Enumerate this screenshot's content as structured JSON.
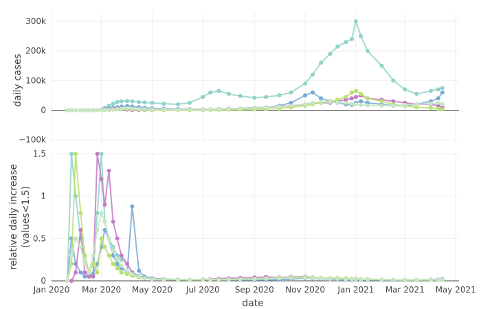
{
  "chart_data": {
    "type": "line",
    "x_dates": [
      "2020-01-20",
      "2020-01-25",
      "2020-01-30",
      "2020-02-05",
      "2020-02-10",
      "2020-02-15",
      "2020-02-20",
      "2020-02-25",
      "2020-03-01",
      "2020-03-05",
      "2020-03-10",
      "2020-03-15",
      "2020-03-20",
      "2020-03-25",
      "2020-04-01",
      "2020-04-07",
      "2020-04-15",
      "2020-04-22",
      "2020-05-01",
      "2020-05-15",
      "2020-06-01",
      "2020-06-15",
      "2020-07-01",
      "2020-07-10",
      "2020-07-20",
      "2020-08-01",
      "2020-08-15",
      "2020-09-01",
      "2020-09-15",
      "2020-10-01",
      "2020-10-15",
      "2020-11-01",
      "2020-11-10",
      "2020-11-20",
      "2020-12-01",
      "2020-12-10",
      "2020-12-20",
      "2020-12-27",
      "2021-01-01",
      "2021-01-07",
      "2021-01-15",
      "2021-02-01",
      "2021-02-15",
      "2021-03-01",
      "2021-03-15",
      "2021-04-01",
      "2021-04-10",
      "2021-04-15"
    ],
    "x_axis": {
      "title": "date",
      "range": [
        "2020-01-01",
        "2021-05-05"
      ],
      "ticks": [
        {
          "date": "2020-01-01",
          "label": "Jan 2020"
        },
        {
          "date": "2020-03-01",
          "label": "Mar 2020"
        },
        {
          "date": "2020-05-01",
          "label": "May 2020"
        },
        {
          "date": "2020-07-01",
          "label": "Jul 2020"
        },
        {
          "date": "2020-09-01",
          "label": "Sep 2020"
        },
        {
          "date": "2020-11-01",
          "label": "Nov 2020"
        },
        {
          "date": "2021-01-01",
          "label": "Jan 2021"
        },
        {
          "date": "2021-03-01",
          "label": "Mar 2021"
        },
        {
          "date": "2021-05-01",
          "label": "May 2021"
        }
      ]
    },
    "top_panel": {
      "ylabel": "daily cases",
      "ylim": [
        -110000,
        330000
      ],
      "ticks": [
        {
          "value": -100000,
          "label": "−100k"
        },
        {
          "value": 0,
          "label": "0"
        },
        {
          "value": 100000,
          "label": "100k"
        },
        {
          "value": 200000,
          "label": "200k"
        },
        {
          "value": 300000,
          "label": "300k"
        }
      ],
      "series": [
        {
          "color": "#8fd3c8",
          "values": [
            0,
            0,
            0,
            0,
            0,
            0,
            0,
            200,
            2000,
            8000,
            15000,
            22000,
            28000,
            30000,
            31000,
            30000,
            27000,
            26000,
            25000,
            22000,
            20000,
            25000,
            45000,
            60000,
            65000,
            55000,
            48000,
            42000,
            45000,
            50000,
            60000,
            90000,
            120000,
            160000,
            190000,
            215000,
            230000,
            240000,
            300000,
            250000,
            200000,
            150000,
            100000,
            70000,
            55000,
            65000,
            70000,
            75000
          ]
        },
        {
          "color": "#7aa9d6",
          "values": [
            0,
            0,
            0,
            0,
            0,
            0,
            0,
            100,
            1000,
            3000,
            5000,
            8000,
            10000,
            12000,
            14000,
            12000,
            10000,
            8000,
            6000,
            5000,
            4000,
            3500,
            3000,
            3000,
            4000,
            5000,
            6000,
            8000,
            10000,
            15000,
            25000,
            50000,
            60000,
            40000,
            30000,
            25000,
            20000,
            18000,
            25000,
            30000,
            25000,
            20000,
            15000,
            15000,
            20000,
            30000,
            40000,
            60000
          ]
        },
        {
          "color": "#c27bc4",
          "values": [
            0,
            0,
            0,
            0,
            0,
            0,
            0,
            0,
            500,
            2000,
            3000,
            4000,
            5000,
            3000,
            2000,
            1000,
            1000,
            500,
            500,
            1000,
            2000,
            3000,
            3000,
            3000,
            4000,
            5000,
            6000,
            8000,
            10000,
            12000,
            15000,
            20000,
            25000,
            25000,
            25000,
            30000,
            35000,
            40000,
            45000,
            50000,
            40000,
            35000,
            30000,
            25000,
            20000,
            20000,
            15000,
            10000
          ]
        },
        {
          "color": "#b8e070",
          "values": [
            0,
            0,
            0,
            0,
            0,
            0,
            0,
            0,
            200,
            500,
            1000,
            2000,
            3000,
            4000,
            4000,
            3000,
            2000,
            1500,
            1000,
            800,
            700,
            800,
            1000,
            1200,
            1500,
            2000,
            2500,
            3000,
            4000,
            6000,
            10000,
            15000,
            20000,
            25000,
            30000,
            35000,
            45000,
            60000,
            65000,
            55000,
            40000,
            30000,
            20000,
            15000,
            10000,
            8000,
            5000,
            3000
          ]
        },
        {
          "color": "#c8e6c4",
          "values": [
            0,
            0,
            0,
            0,
            0,
            0,
            0,
            0,
            300,
            1000,
            2000,
            3000,
            4000,
            5000,
            6000,
            5000,
            4000,
            3500,
            3000,
            2500,
            2000,
            2500,
            3000,
            3500,
            4000,
            5000,
            6000,
            8000,
            10000,
            12000,
            15000,
            20000,
            25000,
            28000,
            28000,
            26000,
            25000,
            22000,
            20000,
            18000,
            16000,
            15000,
            15000,
            18000,
            20000,
            22000,
            25000,
            20000
          ]
        }
      ]
    },
    "bottom_panel": {
      "ylabel": "relative daily increase",
      "ylabel_line2": "(values<1.5)",
      "ylim": [
        0,
        1.5
      ],
      "ticks": [
        {
          "value": 0,
          "label": "0"
        },
        {
          "value": 0.5,
          "label": "0.5"
        },
        {
          "value": 1,
          "label": "1"
        },
        {
          "value": 1.5,
          "label": "1.5"
        }
      ],
      "series": [
        {
          "color": "#8fd3c8",
          "values": [
            0,
            1.5,
            1.0,
            0.5,
            0.3,
            0.1,
            0.05,
            0.8,
            1.5,
            0.7,
            0.5,
            0.4,
            0.3,
            0.25,
            0.2,
            0.1,
            0.06,
            0.04,
            0.03,
            0.02,
            0.015,
            0.012,
            0.015,
            0.018,
            0.02,
            0.015,
            0.012,
            0.01,
            0.012,
            0.015,
            0.02,
            0.03,
            0.03,
            0.025,
            0.02,
            0.018,
            0.015,
            0.012,
            0.02,
            0.015,
            0.012,
            0.01,
            0.008,
            0.008,
            0.01,
            0.012,
            0.01,
            0.01
          ]
        },
        {
          "color": "#7aa9d6",
          "values": [
            0,
            0.5,
            0.2,
            0.1,
            0.05,
            0.05,
            0.08,
            0.2,
            0.4,
            0.6,
            0.5,
            0.3,
            0.2,
            0.15,
            0.1,
            0.88,
            0.12,
            0.05,
            0.03,
            0.02,
            0.015,
            0.012,
            0.012,
            0.015,
            0.018,
            0.02,
            0.015,
            0.012,
            0.012,
            0.015,
            0.02,
            0.04,
            0.03,
            0.025,
            0.02,
            0.015,
            0.015,
            0.012,
            0.015,
            0.012,
            0.01,
            0.01,
            0.008,
            0.01,
            0.012,
            0.015,
            0.015,
            0.02
          ]
        },
        {
          "color": "#c27bc4",
          "values": [
            0,
            0,
            0.1,
            0.6,
            0.1,
            0.05,
            0.05,
            1.5,
            1.2,
            0.9,
            1.3,
            0.7,
            0.5,
            0.3,
            0.2,
            0.1,
            0.05,
            0.03,
            0.02,
            0.015,
            0.012,
            0.012,
            0.015,
            0.02,
            0.025,
            0.03,
            0.035,
            0.04,
            0.045,
            0.04,
            0.045,
            0.05,
            0.04,
            0.035,
            0.03,
            0.03,
            0.025,
            0.02,
            0.025,
            0.02,
            0.018,
            0.015,
            0.012,
            0.012,
            0.01,
            0.012,
            0.015,
            0.012
          ]
        },
        {
          "color": "#b8e070",
          "values": [
            0,
            0.2,
            1.5,
            0.8,
            0.3,
            0.1,
            0.2,
            0.1,
            0.5,
            0.4,
            0.3,
            0.2,
            0.15,
            0.1,
            0.08,
            0.06,
            0.04,
            0.03,
            0.02,
            0.015,
            0.012,
            0.01,
            0.012,
            0.015,
            0.015,
            0.018,
            0.02,
            0.025,
            0.03,
            0.035,
            0.04,
            0.045,
            0.04,
            0.035,
            0.03,
            0.03,
            0.03,
            0.025,
            0.025,
            0.02,
            0.018,
            0.015,
            0.012,
            0.01,
            0.01,
            0.01,
            0.01,
            0.01
          ]
        },
        {
          "color": "#c8e6c4",
          "values": [
            0,
            0.3,
            0.5,
            0.4,
            0.2,
            0.1,
            0.3,
            0.6,
            0.8,
            0.7,
            0.5,
            0.35,
            0.25,
            0.18,
            0.12,
            0.08,
            0.05,
            0.03,
            0.02,
            0.015,
            0.012,
            0.012,
            0.012,
            0.015,
            0.015,
            0.018,
            0.02,
            0.02,
            0.025,
            0.03,
            0.035,
            0.04,
            0.035,
            0.03,
            0.025,
            0.025,
            0.02,
            0.02,
            0.02,
            0.018,
            0.015,
            0.015,
            0.012,
            0.012,
            0.012,
            0.012,
            0.012,
            0.012
          ]
        }
      ]
    }
  }
}
